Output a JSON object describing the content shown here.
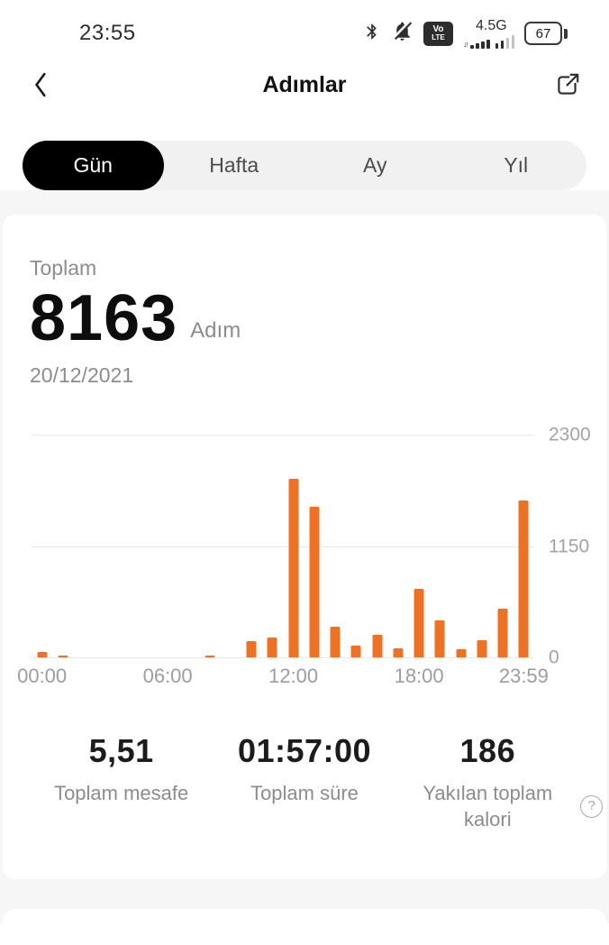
{
  "status_bar": {
    "time": "23:55",
    "icons": [
      "bluetooth-icon",
      "notifications-muted-icon",
      "volte-badge",
      "signal-bars-icon",
      "battery-icon"
    ],
    "volte_line1": "Vo",
    "volte_line2": "LTE",
    "network": "4.5G",
    "battery_percent": "67"
  },
  "header": {
    "title": "Adımlar",
    "back_icon": "chevron-left-icon",
    "share_icon": "share-external-icon"
  },
  "tabs": {
    "items": [
      {
        "label": "Gün",
        "active": true
      },
      {
        "label": "Hafta",
        "active": false
      },
      {
        "label": "Ay",
        "active": false
      },
      {
        "label": "Yıl",
        "active": false
      }
    ]
  },
  "summary": {
    "label": "Toplam",
    "value": "8163",
    "unit": "Adım",
    "date": "20/12/2021"
  },
  "chart_data": {
    "type": "bar",
    "title": "Hourly steps",
    "hours": 24,
    "xticks": [
      "00:00",
      "06:00",
      "12:00",
      "18:00",
      "23:59"
    ],
    "yticks": [
      0,
      1150,
      2300
    ],
    "ylim": [
      0,
      2300
    ],
    "grid": true,
    "legend": "none",
    "bar_color": "#ed7224",
    "total_steps": 8163,
    "series": [
      {
        "name": "Adım",
        "points": [
          {
            "hour": 0,
            "value": 55
          },
          {
            "hour": 1,
            "value": 20
          },
          {
            "hour": 8,
            "value": 25
          },
          {
            "hour": 10,
            "value": 170
          },
          {
            "hour": 11,
            "value": 205
          },
          {
            "hour": 12,
            "value": 1850
          },
          {
            "hour": 13,
            "value": 1560
          },
          {
            "hour": 14,
            "value": 320
          },
          {
            "hour": 15,
            "value": 125
          },
          {
            "hour": 16,
            "value": 235
          },
          {
            "hour": 17,
            "value": 95
          },
          {
            "hour": 18,
            "value": 715
          },
          {
            "hour": 19,
            "value": 390
          },
          {
            "hour": 20,
            "value": 85
          },
          {
            "hour": 21,
            "value": 185
          },
          {
            "hour": 22,
            "value": 505
          },
          {
            "hour": 23,
            "value": 1623
          }
        ]
      }
    ]
  },
  "stats": [
    {
      "value": "5,51",
      "label": "Toplam mesafe"
    },
    {
      "value": "01:57:00",
      "label": "Toplam süre"
    },
    {
      "value": "186",
      "label": "Yakılan toplam kalori",
      "help_glyph": "?"
    }
  ],
  "colors": {
    "accent": "#ed7224",
    "page_bg": "#f6f6f7",
    "card_bg": "#ffffff",
    "tab_active_bg": "#000000",
    "muted_text": "#8c8c8c",
    "axis_text": "#9d9d9d"
  }
}
